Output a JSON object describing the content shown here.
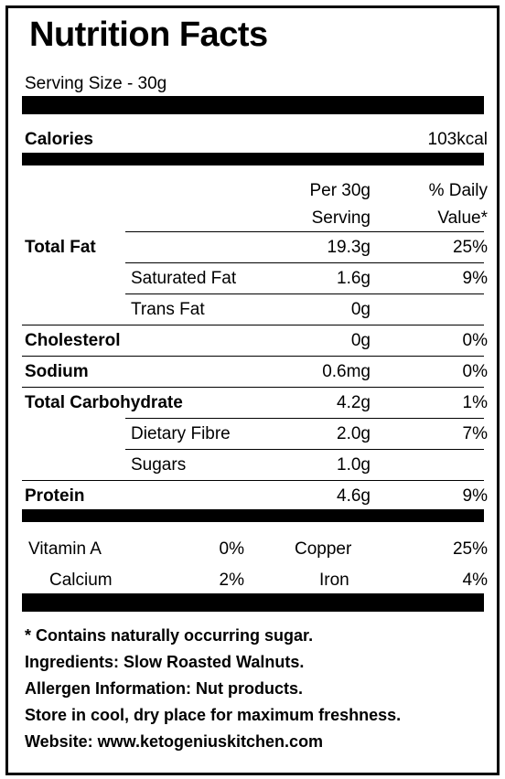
{
  "title": "Nutrition Facts",
  "serving_size": "Serving Size - 30g",
  "calories": {
    "label": "Calories",
    "value": "103kcal"
  },
  "header": {
    "per_line1": "Per 30g",
    "per_line2": "Serving",
    "dv_line1": "% Daily",
    "dv_line2": "Value*"
  },
  "rows": [
    {
      "label": "Total Fat",
      "qty": "19.3g",
      "dv": "25%"
    },
    {
      "label": "Saturated Fat",
      "qty": "1.6g",
      "dv": "9%"
    },
    {
      "label": "Trans Fat",
      "qty": "0g",
      "dv": ""
    },
    {
      "label": "Cholesterol",
      "qty": "0g",
      "dv": "0%"
    },
    {
      "label": "Sodium",
      "qty": "0.6mg",
      "dv": "0%"
    },
    {
      "label": "Total Carbohydrate",
      "qty": "4.2g",
      "dv": "1%"
    },
    {
      "label": "Dietary Fibre",
      "qty": "2.0g",
      "dv": "7%"
    },
    {
      "label": "Sugars",
      "qty": "1.0g",
      "dv": ""
    },
    {
      "label": "Protein",
      "qty": "4.6g",
      "dv": "9%"
    }
  ],
  "vitamins": [
    {
      "name": "Vitamin A",
      "value": "0%"
    },
    {
      "name": "Copper",
      "value": "25%"
    },
    {
      "name": "Calcium",
      "value": "2%"
    },
    {
      "name": "Iron",
      "value": "4%"
    }
  ],
  "footer": [
    "* Contains naturally occurring sugar.",
    "Ingredients: Slow Roasted Walnuts.",
    "Allergen Information: Nut products.",
    "Store in cool, dry place for maximum freshness.",
    "Website: www.ketogeniuskitchen.com"
  ]
}
